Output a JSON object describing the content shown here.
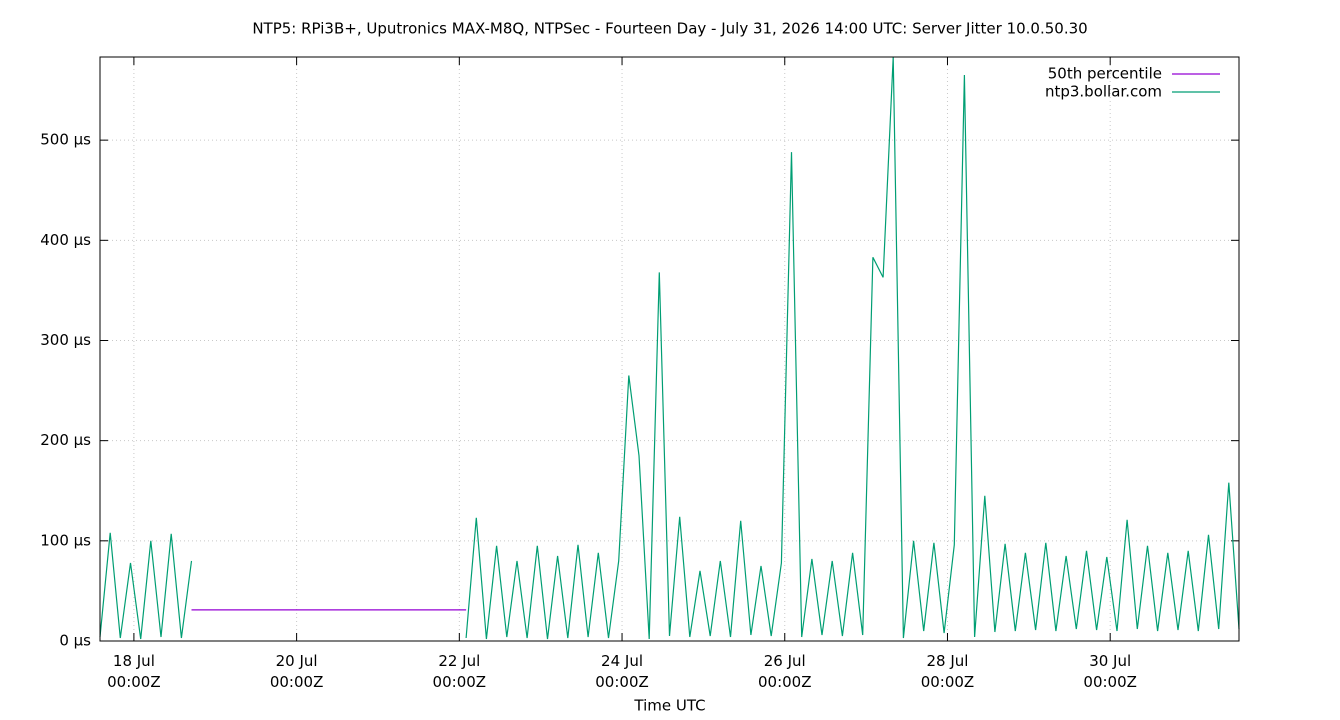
{
  "chart_data": {
    "type": "line",
    "title": "NTP5: RPi3B+, Uputronics MAX-M8Q, NTPSec - Fourteen Day - July 31, 2026 14:00 UTC: Server Jitter 10.0.50.30",
    "x_label": "Time UTC",
    "xlim": [
      "17 Jul 14:00Z",
      "31 Jul 14:00Z"
    ],
    "xticks": [
      "18 Jul\n00:00Z",
      "20 Jul\n00:00Z",
      "22 Jul\n00:00Z",
      "24 Jul\n00:00Z",
      "26 Jul\n00:00Z",
      "28 Jul\n00:00Z",
      "30 Jul\n00:00Z"
    ],
    "ylim": [
      0,
      583
    ],
    "yticks": [
      {
        "value": 0,
        "label": "0 µs"
      },
      {
        "value": 100,
        "label": "100 µs"
      },
      {
        "value": 200,
        "label": "200 µs"
      },
      {
        "value": 300,
        "label": "300 µs"
      },
      {
        "value": 400,
        "label": "400 µs"
      },
      {
        "value": 500,
        "label": "500 µs"
      }
    ],
    "grid": true,
    "legend": "top-right",
    "series": [
      {
        "name": "50th percentile",
        "color": "#9400d3",
        "x": [
          "18 Jul 17:00Z",
          "22 Jul 02:00Z"
        ],
        "values": [
          31,
          31
        ]
      },
      {
        "name": "ntp3.bollar.com",
        "color": "#009e73",
        "x": [
          "17 Jul 14:00Z",
          "17 Jul 17:00Z",
          "17 Jul 20:00Z",
          "17 Jul 23:00Z",
          "18 Jul 02:00Z",
          "18 Jul 05:00Z",
          "18 Jul 08:00Z",
          "18 Jul 11:00Z",
          "18 Jul 14:00Z",
          "18 Jul 17:00Z",
          "18 Jul 20:00Z",
          "22 Jul 02:00Z",
          "22 Jul 05:00Z",
          "22 Jul 08:00Z",
          "22 Jul 11:00Z",
          "22 Jul 14:00Z",
          "22 Jul 17:00Z",
          "22 Jul 20:00Z",
          "22 Jul 23:00Z",
          "23 Jul 02:00Z",
          "23 Jul 05:00Z",
          "23 Jul 08:00Z",
          "23 Jul 11:00Z",
          "23 Jul 14:00Z",
          "23 Jul 17:00Z",
          "23 Jul 20:00Z",
          "23 Jul 23:00Z",
          "24 Jul 02:00Z",
          "24 Jul 05:00Z",
          "24 Jul 08:00Z",
          "24 Jul 11:00Z",
          "24 Jul 14:00Z",
          "24 Jul 17:00Z",
          "24 Jul 20:00Z",
          "24 Jul 23:00Z",
          "25 Jul 02:00Z",
          "25 Jul 05:00Z",
          "25 Jul 08:00Z",
          "25 Jul 11:00Z",
          "25 Jul 14:00Z",
          "25 Jul 17:00Z",
          "25 Jul 20:00Z",
          "25 Jul 23:00Z",
          "26 Jul 02:00Z",
          "26 Jul 05:00Z",
          "26 Jul 08:00Z",
          "26 Jul 11:00Z",
          "26 Jul 14:00Z",
          "26 Jul 17:00Z",
          "26 Jul 20:00Z",
          "26 Jul 23:00Z",
          "27 Jul 02:00Z",
          "27 Jul 05:00Z",
          "27 Jul 08:00Z",
          "27 Jul 11:00Z",
          "27 Jul 14:00Z",
          "27 Jul 17:00Z",
          "27 Jul 20:00Z",
          "27 Jul 23:00Z",
          "28 Jul 02:00Z",
          "28 Jul 05:00Z",
          "28 Jul 08:00Z",
          "28 Jul 11:00Z",
          "28 Jul 14:00Z",
          "28 Jul 17:00Z",
          "28 Jul 20:00Z",
          "28 Jul 23:00Z",
          "29 Jul 02:00Z",
          "29 Jul 05:00Z",
          "29 Jul 08:00Z",
          "29 Jul 11:00Z",
          "29 Jul 14:00Z",
          "29 Jul 17:00Z",
          "29 Jul 20:00Z",
          "29 Jul 23:00Z",
          "30 Jul 02:00Z",
          "30 Jul 05:00Z",
          "30 Jul 08:00Z",
          "30 Jul 11:00Z",
          "30 Jul 14:00Z",
          "30 Jul 17:00Z",
          "30 Jul 20:00Z",
          "30 Jul 23:00Z",
          "31 Jul 02:00Z",
          "31 Jul 05:00Z",
          "31 Jul 08:00Z",
          "31 Jul 11:00Z",
          "31 Jul 14:00Z"
        ],
        "values": [
          4,
          108,
          3,
          78,
          2,
          100,
          4,
          107,
          3,
          80,
          null,
          3,
          123,
          2,
          95,
          4,
          80,
          3,
          95,
          2,
          85,
          3,
          96,
          4,
          88,
          3,
          80,
          265,
          185,
          2,
          368,
          5,
          124,
          4,
          70,
          5,
          80,
          4,
          120,
          6,
          75,
          5,
          78,
          488,
          4,
          82,
          6,
          80,
          5,
          88,
          6,
          383,
          363,
          583,
          3,
          100,
          10,
          98,
          8,
          96,
          565,
          4,
          145,
          9,
          97,
          10,
          88,
          11,
          98,
          10,
          85,
          12,
          90,
          11,
          84,
          10,
          121,
          12,
          95,
          10,
          88,
          11,
          90,
          10,
          106,
          12,
          158,
          12
        ]
      }
    ]
  }
}
